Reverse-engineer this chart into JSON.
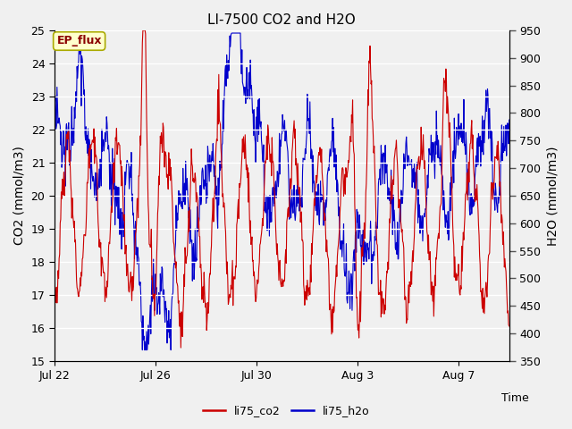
{
  "title": "LI-7500 CO2 and H2O",
  "xlabel": "Time",
  "ylabel_left": "CO2 (mmol/m3)",
  "ylabel_right": "H2O (mmol/m3)",
  "annotation": "EP_flux",
  "ylim_left": [
    15.0,
    25.0
  ],
  "ylim_right": [
    350,
    950
  ],
  "yticks_left": [
    15.0,
    16.0,
    17.0,
    18.0,
    19.0,
    20.0,
    21.0,
    22.0,
    23.0,
    24.0,
    25.0
  ],
  "yticks_right": [
    350,
    400,
    450,
    500,
    550,
    600,
    650,
    700,
    750,
    800,
    850,
    900,
    950
  ],
  "xtick_labels": [
    "Jul 22",
    "Jul 26",
    "Jul 30",
    "Aug 3",
    "Aug 7"
  ],
  "xtick_positions": [
    0,
    4,
    8,
    12,
    16
  ],
  "xlim": [
    0,
    18
  ],
  "color_co2": "#cc0000",
  "color_h2o": "#0000cc",
  "legend_labels": [
    "li75_co2",
    "li75_h2o"
  ],
  "fig_bg_color": "#f0f0f0",
  "plot_bg_color": "#e0e0e0",
  "grid_color": "#ffffff",
  "annotation_text_color": "#8b0000",
  "annotation_bg": "#ffffcc",
  "annotation_border": "#aaaa00",
  "title_fontsize": 11,
  "axis_label_fontsize": 10,
  "tick_fontsize": 9,
  "legend_fontsize": 9,
  "line_width": 0.8
}
